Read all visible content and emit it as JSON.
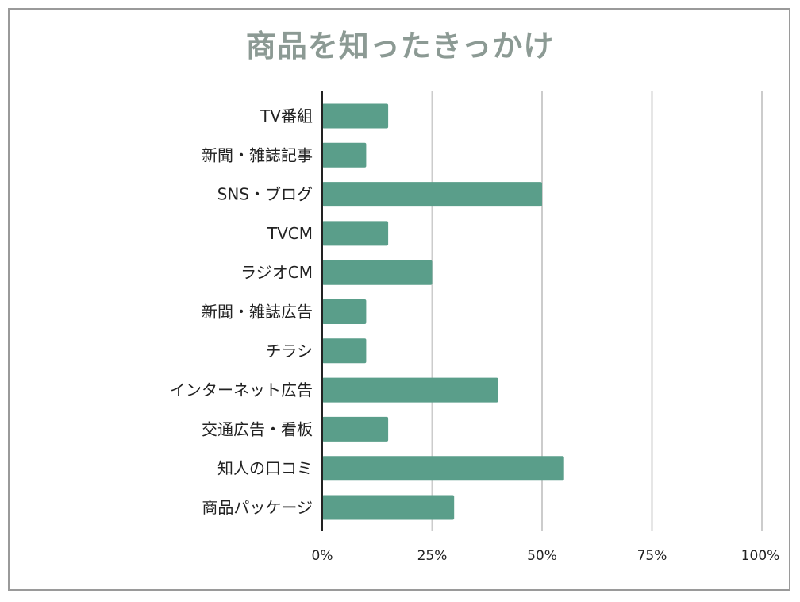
{
  "chart_data": {
    "type": "bar",
    "orientation": "horizontal",
    "title": "商品を知ったきっかけ",
    "categories": [
      "TV番組",
      "新聞・雑誌記事",
      "SNS・ブログ",
      "TVCM",
      "ラジオCM",
      "新聞・雑誌広告",
      "チラシ",
      "インターネット広告",
      "交通広告・看板",
      "知人の口コミ",
      "商品パッケージ"
    ],
    "values": [
      15,
      10,
      50,
      15,
      25,
      10,
      10,
      40,
      15,
      55,
      30
    ],
    "xlim": [
      0,
      100
    ],
    "xticks": [
      0,
      25,
      50,
      75,
      100
    ],
    "xtick_labels": [
      "0%",
      "25%",
      "50%",
      "75%",
      "100%"
    ],
    "value_unit": "percent",
    "grid": true,
    "legend": "none",
    "bar_color": "#5a9e8a",
    "title_color": "#8c9a94",
    "grid_color": "#cccccc"
  }
}
